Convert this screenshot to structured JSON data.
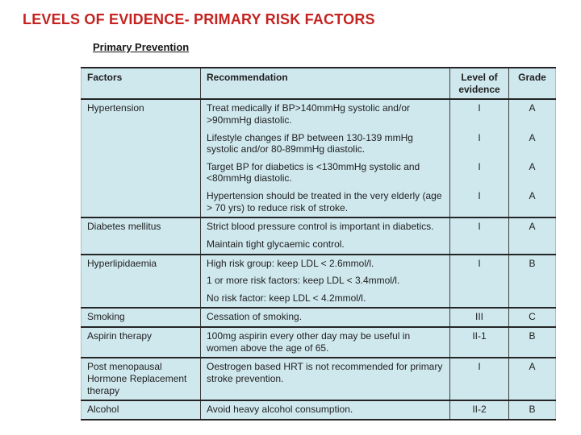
{
  "slide": {
    "title": "LEVELS OF EVIDENCE- PRIMARY RISK FACTORS",
    "table_title": "Primary Prevention",
    "colors": {
      "title_red": "#c42320",
      "cell_background": "#cfe8ee",
      "major_line": "#242424",
      "column_line": "#3d3d3d",
      "text": "#1f1f1f"
    }
  },
  "table": {
    "headers": {
      "factors": "Factors",
      "recommendation": "Recommendation",
      "level": "Level of evidence",
      "grade": "Grade"
    },
    "groups": [
      {
        "factor": "Hypertension",
        "rows": [
          {
            "recommendation": "Treat medically if BP>140mmHg systolic and/or >90mmHg diastolic.",
            "level": "I",
            "grade": "A"
          },
          {
            "recommendation": "Lifestyle changes if BP between 130-139 mmHg systolic and/or 80-89mmHg diastolic.",
            "level": "I",
            "grade": "A"
          },
          {
            "recommendation": "Target BP for diabetics is <130mmHg systolic and <80mmHg diastolic.",
            "level": "I",
            "grade": "A"
          },
          {
            "recommendation": "Hypertension should be treated in the very elderly (age > 70 yrs) to reduce risk of stroke.",
            "level": "I",
            "grade": "A"
          }
        ]
      },
      {
        "factor": "Diabetes mellitus",
        "rows": [
          {
            "recommendation": "Strict blood pressure control is important in diabetics.",
            "level": "I",
            "grade": "A"
          },
          {
            "recommendation": "Maintain tight glycaemic control.",
            "level": "",
            "grade": ""
          }
        ]
      },
      {
        "factor": "Hyperlipidaemia",
        "rows": [
          {
            "recommendation": "High risk group: keep LDL < 2.6mmol/l.",
            "level": "I",
            "grade": "B"
          },
          {
            "recommendation": "1 or more risk factors: keep LDL < 3.4mmol/l.",
            "level": "",
            "grade": ""
          },
          {
            "recommendation": "No risk factor: keep LDL < 4.2mmol/l.",
            "level": "",
            "grade": ""
          }
        ]
      },
      {
        "factor": "Smoking",
        "rows": [
          {
            "recommendation": "Cessation of smoking.",
            "level": "III",
            "grade": "C"
          }
        ]
      },
      {
        "factor": "Aspirin therapy",
        "rows": [
          {
            "recommendation": "100mg aspirin every other day may be useful in women above the age of 65.",
            "level": "II-1",
            "grade": "B"
          }
        ]
      },
      {
        "factor": "Post menopausal Hormone Replacement therapy",
        "rows": [
          {
            "recommendation": "Oestrogen based HRT is not recommended for primary stroke prevention.",
            "level": "I",
            "grade": "A"
          }
        ]
      },
      {
        "factor": "Alcohol",
        "rows": [
          {
            "recommendation": "Avoid heavy alcohol consumption.",
            "level": "II-2",
            "grade": "B"
          }
        ]
      }
    ]
  }
}
